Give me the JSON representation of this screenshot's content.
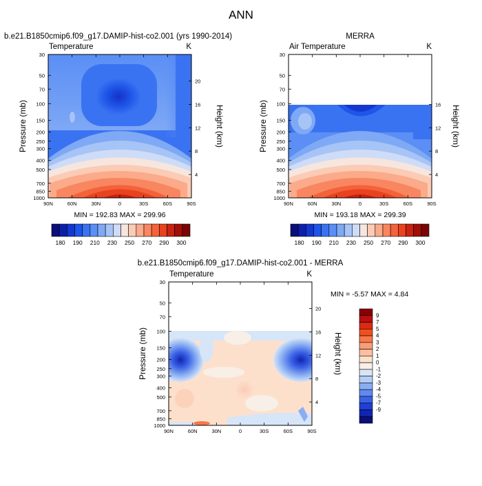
{
  "figure_title": "ANN",
  "panels": {
    "model": {
      "title": "b.e21.B1850cmip6.f09_g17.DAMIP-hist-co2.001 (yrs 1990-2014)",
      "left_label": "Temperature",
      "unit": "K",
      "stats": "MIN = 192.83   MAX = 299.96"
    },
    "obs": {
      "title": "MERRA",
      "left_label": "Air Temperature",
      "unit": "K",
      "stats": "MIN = 193.18   MAX = 299.39"
    },
    "diff": {
      "title": "b.e21.B1850cmip6.f09_g17.DAMIP-hist-co2.001 - MERRA",
      "left_label": "Temperature",
      "unit": "K",
      "stats": "MIN =  -5.57   MAX =   4.84"
    }
  },
  "chart_data": [
    {
      "type": "heatmap",
      "title": "b.e21.B1850cmip6.f09_g17.DAMIP-hist-co2.001 (yrs 1990-2014)",
      "ylabel": "Pressure (mb)",
      "y2label": "Height (km)",
      "x_ticks": [
        "90N",
        "60N",
        "30N",
        "0",
        "30S",
        "60S",
        "90S"
      ],
      "y_ticks": [
        "30",
        "50",
        "70",
        "100",
        "150",
        "200",
        "250",
        "300",
        "400",
        "500",
        "700",
        "850",
        "1000"
      ],
      "y2_ticks": [
        "20",
        "16",
        "12",
        "8",
        "4"
      ],
      "min": 192.83,
      "max": 299.96,
      "colorbar_levels": [
        "180",
        "190",
        "210",
        "230",
        "250",
        "270",
        "290",
        "300"
      ],
      "colors": [
        "#0a0f7a",
        "#0d20a8",
        "#1238d0",
        "#1f55e8",
        "#3a73f2",
        "#5b8ff5",
        "#7fa9f5",
        "#a7c4f6",
        "#cfdcf7",
        "#f6e6de",
        "#fbcbb5",
        "#fbaa8a",
        "#f88660",
        "#f4623a",
        "#e8421f",
        "#c92212",
        "#a00f08",
        "#7a0505"
      ]
    },
    {
      "type": "heatmap",
      "title": "MERRA",
      "ylabel": "Pressure (mb)",
      "y2label": "Height (km)",
      "x_ticks": [
        "90N",
        "60N",
        "30N",
        "0",
        "30S",
        "60S",
        "90S"
      ],
      "y_ticks": [
        "30",
        "50",
        "70",
        "100",
        "150",
        "200",
        "250",
        "300",
        "400",
        "500",
        "700",
        "850",
        "1000"
      ],
      "y2_ticks": [
        "16",
        "12",
        "8",
        "4"
      ],
      "min": 193.18,
      "max": 299.39,
      "colorbar_levels": [
        "180",
        "190",
        "210",
        "230",
        "250",
        "270",
        "290",
        "300"
      ],
      "colors": [
        "#0a0f7a",
        "#0d20a8",
        "#1238d0",
        "#1f55e8",
        "#3a73f2",
        "#5b8ff5",
        "#7fa9f5",
        "#a7c4f6",
        "#cfdcf7",
        "#f6e6de",
        "#fbcbb5",
        "#fbaa8a",
        "#f88660",
        "#f4623a",
        "#e8421f",
        "#c92212",
        "#a00f08",
        "#7a0505"
      ]
    },
    {
      "type": "heatmap",
      "title": "b.e21.B1850cmip6.f09_g17.DAMIP-hist-co2.001 - MERRA",
      "ylabel": "Pressure (mb)",
      "y2label": "Height (km)",
      "x_ticks": [
        "90N",
        "60N",
        "30N",
        "0",
        "30S",
        "60S",
        "90S"
      ],
      "y_ticks": [
        "30",
        "50",
        "70",
        "100",
        "150",
        "200",
        "250",
        "300",
        "400",
        "500",
        "700",
        "850",
        "1000"
      ],
      "y2_ticks": [
        "20",
        "16",
        "12",
        "8",
        "4"
      ],
      "min": -5.57,
      "max": 4.84,
      "colorbar_levels": [
        "9",
        "7",
        "5",
        "4",
        "3",
        "2",
        "1",
        "0",
        "-1",
        "-2",
        "-3",
        "-4",
        "-5",
        "-7",
        "-9"
      ],
      "colors": [
        "#8b0000",
        "#b81010",
        "#dc2a14",
        "#f0501e",
        "#f87848",
        "#fb9c76",
        "#fdbfa2",
        "#fde0cc",
        "#f8efe6",
        "#d6e5f8",
        "#b3cdf5",
        "#8aaef2",
        "#6189ef",
        "#3a62e6",
        "#1f3fd6",
        "#1224b0",
        "#0a0f7a"
      ]
    }
  ]
}
